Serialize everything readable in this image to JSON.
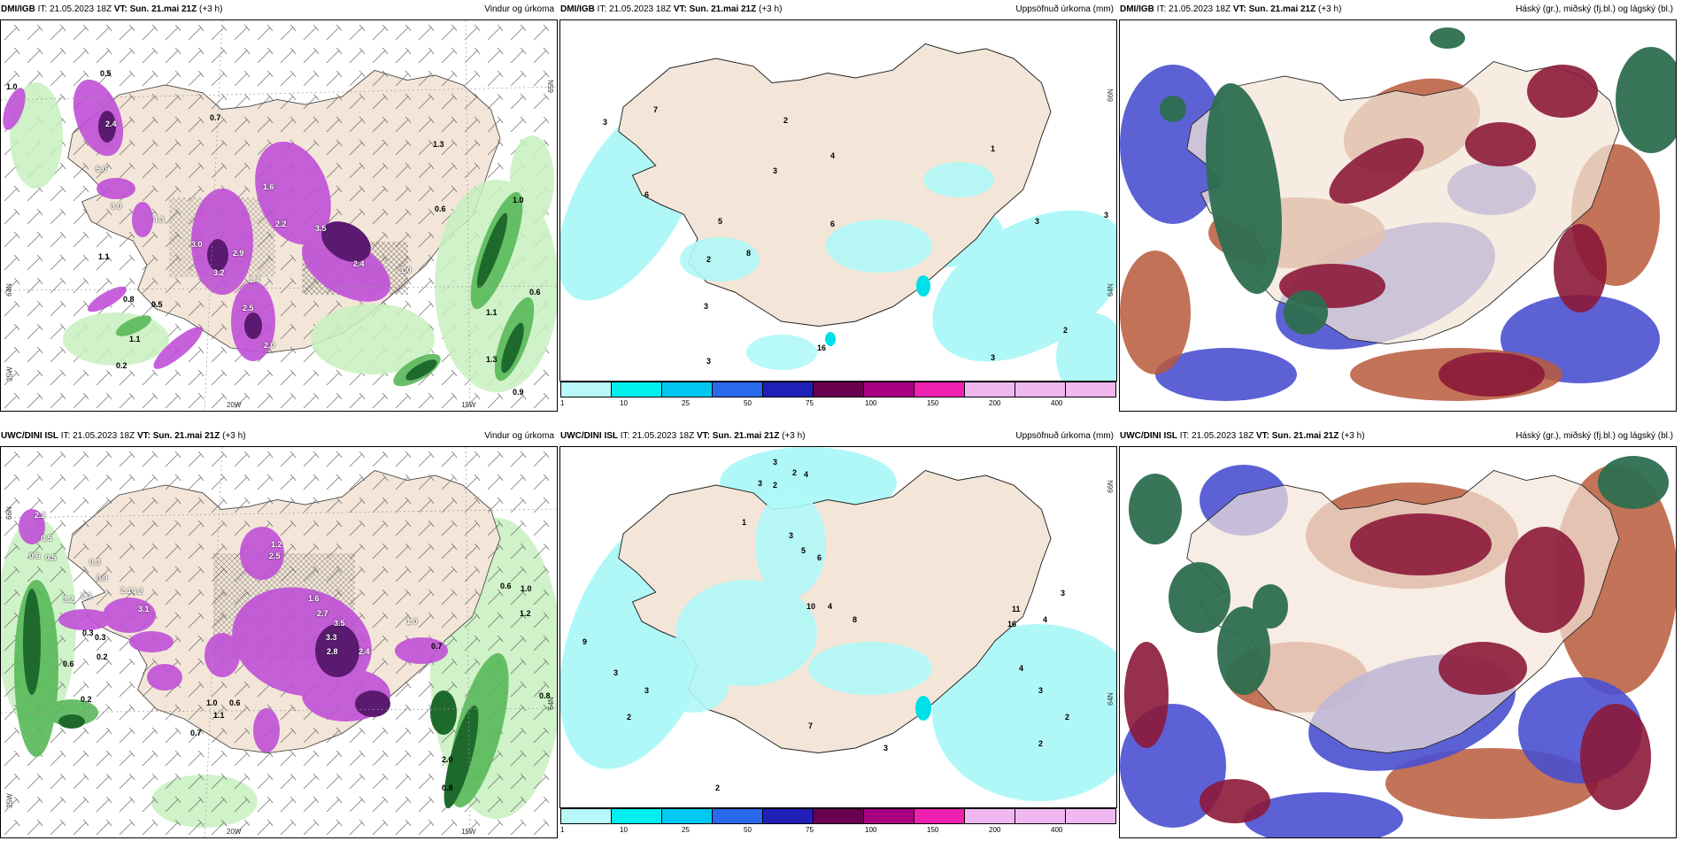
{
  "panels": [
    {
      "model": "DMI/IGB",
      "it_label": "IT:",
      "it_value": "21.05.2023 18Z",
      "vt_label": "VT:",
      "vt_value": "Sun. 21.mai 21Z",
      "lead": "(+3 h)",
      "title": "Vindur og úrkoma",
      "axis": {
        "lat1": "65N",
        "lat2": "64N",
        "lon1": "20W",
        "lon2": "15W",
        "lon3": "25W"
      },
      "values": [
        "0.5",
        "1.0",
        "2.4",
        "5.0",
        "3.0",
        "4.3",
        "1.1",
        "3.0",
        "2.9",
        "3.2",
        "1.4",
        "2.5",
        "2.0",
        "1.6",
        "2.2",
        "3.5",
        "2.4",
        "1.0",
        "0.7",
        "0.6",
        "1.3",
        "1.0",
        "0.6",
        "1.1",
        "1.3",
        "0.9",
        "0.8",
        "0.5",
        "1.1",
        "0.2"
      ]
    },
    {
      "model": "DMI/IGB",
      "it_label": "IT:",
      "it_value": "21.05.2023 18Z",
      "vt_label": "VT:",
      "vt_value": "Sun. 21.mai 21Z",
      "lead": "(+3 h)",
      "title": "Uppsöfnuð úrkoma (mm)",
      "axis": {
        "lat1": "66N",
        "lat2": "64N"
      },
      "values": [
        "3",
        "7",
        "6",
        "2",
        "4",
        "3",
        "1",
        "5",
        "6",
        "8",
        "2",
        "3",
        "16",
        "3",
        "3",
        "2",
        "3",
        "3"
      ]
    },
    {
      "model": "DMI/IGB",
      "it_label": "IT:",
      "it_value": "21.05.2023 18Z",
      "vt_label": "VT:",
      "vt_value": "Sun. 21.mai 21Z",
      "lead": "(+3 h)",
      "title": "Háský (gr.), miðský (fj.bl.) og lágský (bl.)"
    },
    {
      "model": "UWC/DINI ISL",
      "it_label": "IT:",
      "it_value": "21.05.2023 18Z",
      "vt_label": "VT:",
      "vt_value": "Sun. 21.mai 21Z",
      "lead": "(+3 h)",
      "title": "Vindur og úrkoma",
      "axis": {
        "lat1": "66N",
        "lat2": "64N",
        "lon1": "20W",
        "lon2": "15W",
        "lon3": "25W"
      },
      "values": [
        "2.2",
        "0.5",
        "0.5",
        "0.6",
        "0.9",
        "0.3",
        "2.1",
        "4.2",
        "3.1",
        "2.3",
        "3.2",
        "1.2",
        "2.5",
        "1.6",
        "2.7",
        "3.5",
        "3.3",
        "2.8",
        "2.4",
        "1.0",
        "0.7",
        "0.6",
        "1.0",
        "1.2",
        "0.3",
        "0.3",
        "0.6",
        "0.2",
        "0.2",
        "1.0",
        "1.1",
        "0.6",
        "0.7",
        "0.8",
        "2.0",
        "0.8"
      ]
    },
    {
      "model": "UWC/DINI ISL",
      "it_label": "IT:",
      "it_value": "21.05.2023 18Z",
      "vt_label": "VT:",
      "vt_value": "Sun. 21.mai 21Z",
      "lead": "(+3 h)",
      "title": "Uppsöfnuð úrkoma (mm)",
      "axis": {
        "lat1": "66N",
        "lat2": "64N"
      },
      "values": [
        "3",
        "2",
        "4",
        "3",
        "2",
        "1",
        "3",
        "5",
        "6",
        "10",
        "4",
        "8",
        "11",
        "16",
        "4",
        "3",
        "4",
        "3",
        "2",
        "2",
        "9",
        "3",
        "2",
        "3",
        "7",
        "3",
        "2"
      ]
    },
    {
      "model": "UWC/DINI ISL",
      "it_label": "IT:",
      "it_value": "21.05.2023 18Z",
      "vt_label": "VT:",
      "vt_value": "Sun. 21.mai 21Z",
      "lead": "(+3 h)",
      "title": "Háský (gr.), miðský (fj.bl.) og lágský (bl.)"
    }
  ],
  "legend": {
    "ticks": [
      "1",
      "10",
      "25",
      "50",
      "75",
      "100",
      "150",
      "200",
      "400"
    ],
    "colors": [
      "#b8f8f8",
      "#00f0f0",
      "#00c8f0",
      "#2a68ee",
      "#2020b8",
      "#6a0050",
      "#a80080",
      "#f020b0",
      "#f0b8f0"
    ]
  },
  "colors": {
    "land": "#f3e6d8",
    "green_light": "#c8f0c0",
    "green_mid": "#58b858",
    "green_dark": "#1e6a2c",
    "magenta": "#c050d8",
    "purple_dark": "#5a1a70",
    "cyan_light": "#b0f8f8",
    "high_cloud": "#2e6e50",
    "mid_cloud": "#8c1a3a",
    "low_cloud": "#4a50d0",
    "brown": "#b85a3a"
  }
}
